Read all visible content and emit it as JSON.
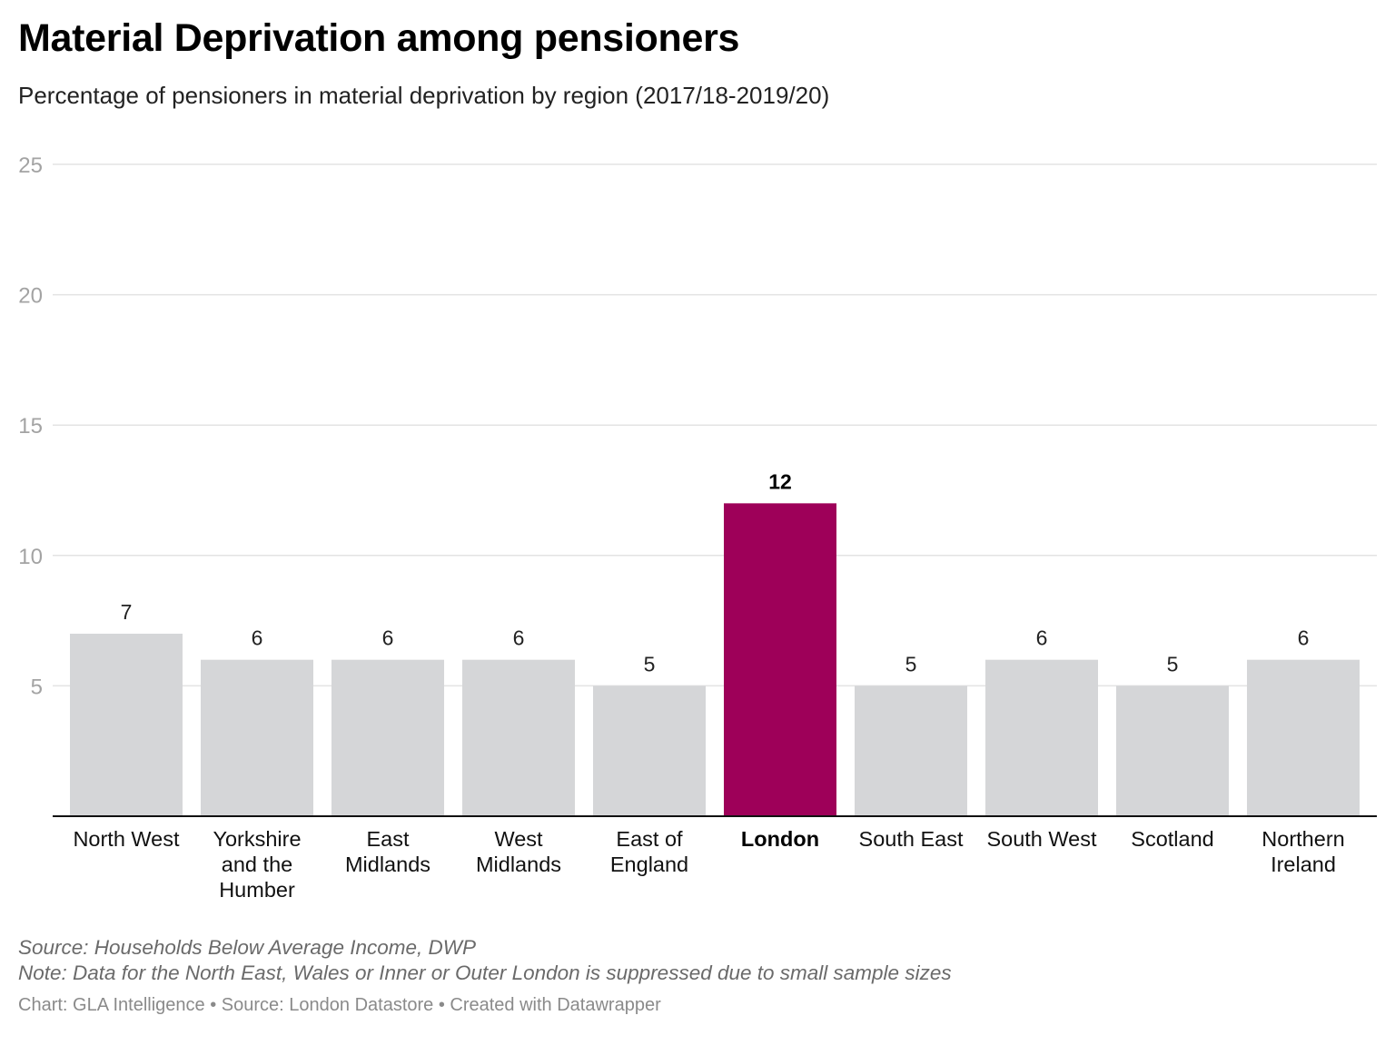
{
  "header": {
    "title": "Material Deprivation among pensioners",
    "subtitle": "Percentage of pensioners in material deprivation by region (2017/18-2019/20)"
  },
  "chart_data": {
    "type": "bar",
    "title": "Material Deprivation among pensioners",
    "subtitle": "Percentage of pensioners in material deprivation by region (2017/18-2019/20)",
    "xlabel": "",
    "ylabel": "",
    "ylim": [
      0,
      25
    ],
    "yticks": [
      5,
      10,
      15,
      20,
      25
    ],
    "grid": true,
    "categories": [
      [
        "North West"
      ],
      [
        "Yorkshire",
        "and the",
        "Humber"
      ],
      [
        "East",
        "Midlands"
      ],
      [
        "West",
        "Midlands"
      ],
      [
        "East of",
        "England"
      ],
      [
        "London"
      ],
      [
        "South East"
      ],
      [
        "South West"
      ],
      [
        "Scotland"
      ],
      [
        "Northern",
        "Ireland"
      ]
    ],
    "values": [
      7,
      6,
      6,
      6,
      5,
      12,
      5,
      6,
      5,
      6
    ],
    "highlight_index": 5,
    "colors": {
      "default_bar": "#d5d6d8",
      "highlight_bar": "#9e0059",
      "gridline": "#e3e3e3",
      "axis": "#111111",
      "tick_label": "#a3a3a3",
      "value_label": "#222222"
    }
  },
  "footer": {
    "source": "Source: Households Below Average Income, DWP",
    "note": "Note: Data for the North East, Wales or Inner or Outer London is suppressed due to small sample sizes",
    "credits": "Chart: GLA Intelligence • Source: London Datastore • Created with Datawrapper"
  }
}
